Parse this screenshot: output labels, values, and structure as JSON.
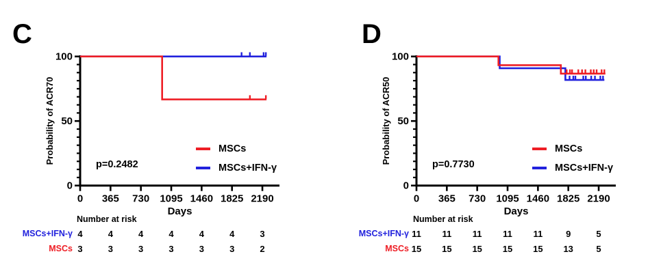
{
  "colors": {
    "red": "#EE1E25",
    "blue": "#2222DD",
    "axis": "#000000",
    "text": "#000000",
    "background": "#FFFFFF"
  },
  "chart_data": [
    {
      "type": "line",
      "subtype": "kaplan-meier-step",
      "panel": "C",
      "title": "",
      "xlabel": "Days",
      "ylabel": "Probability of ACR70",
      "pvalue": "p=0.2482",
      "xlim": [
        0,
        2400
      ],
      "ylim": [
        0,
        100
      ],
      "xticks": [
        0,
        365,
        730,
        1095,
        1460,
        1825,
        2190
      ],
      "yticks": [
        0,
        50,
        100
      ],
      "y_minor_tick": 6.25,
      "grid": false,
      "legend_position": "inside-right",
      "series": [
        {
          "name": "MSCs",
          "color_key": "red",
          "steps": [
            [
              0,
              100
            ],
            [
              985,
              100
            ],
            [
              985,
              66.7
            ],
            [
              2240,
              66.7
            ]
          ],
          "censor_y": 66.7,
          "censor_x": [
            2040,
            2232
          ]
        },
        {
          "name": "MSCs+IFN-γ",
          "color_key": "blue",
          "steps": [
            [
              0,
              100
            ],
            [
              2240,
              100
            ]
          ],
          "censor_y": 100,
          "censor_x": [
            1940,
            2040,
            2205,
            2232
          ]
        }
      ],
      "number_at_risk": {
        "header": "Number at risk",
        "rows": [
          {
            "label": "MSCs+IFN-γ",
            "color_key": "blue",
            "values": [
              4,
              4,
              4,
              4,
              4,
              4,
              3
            ]
          },
          {
            "label": "MSCs",
            "color_key": "red",
            "values": [
              3,
              3,
              3,
              3,
              3,
              3,
              2
            ]
          }
        ]
      }
    },
    {
      "type": "line",
      "subtype": "kaplan-meier-step",
      "panel": "D",
      "title": "",
      "xlabel": "Days",
      "ylabel": "Probability of ACR50",
      "pvalue": "p=0.7730",
      "xlim": [
        0,
        2400
      ],
      "ylim": [
        0,
        100
      ],
      "xticks": [
        0,
        365,
        730,
        1095,
        1460,
        1825,
        2190
      ],
      "yticks": [
        0,
        50,
        100
      ],
      "y_minor_tick": 6.25,
      "grid": false,
      "legend_position": "inside-right",
      "series": [
        {
          "name": "MSCs",
          "color_key": "red",
          "steps": [
            [
              0,
              100
            ],
            [
              985,
              100
            ],
            [
              985,
              93.3
            ],
            [
              1735,
              93.3
            ],
            [
              1735,
              86.7
            ],
            [
              2270,
              86.7
            ]
          ],
          "censor_y": 86.7,
          "censor_x": [
            1805,
            1845,
            1870,
            1945,
            1990,
            2030,
            2095,
            2130,
            2165,
            2225,
            2258
          ]
        },
        {
          "name": "MSCs+IFN-γ",
          "color_key": "blue",
          "steps": [
            [
              0,
              100
            ],
            [
              1000,
              100
            ],
            [
              1000,
              90.9
            ],
            [
              1790,
              90.9
            ],
            [
              1790,
              81.8
            ],
            [
              2258,
              81.8
            ]
          ],
          "censor_y": 81.8,
          "censor_x": [
            1840,
            1885,
            1910,
            2005,
            2035,
            2100,
            2145,
            2210,
            2242
          ]
        }
      ],
      "number_at_risk": {
        "header": "Number at risk",
        "rows": [
          {
            "label": "MSCs+IFN-γ",
            "color_key": "blue",
            "values": [
              11,
              11,
              11,
              11,
              11,
              9,
              5
            ]
          },
          {
            "label": "MSCs",
            "color_key": "red",
            "values": [
              15,
              15,
              15,
              15,
              15,
              13,
              5
            ]
          }
        ]
      }
    }
  ]
}
